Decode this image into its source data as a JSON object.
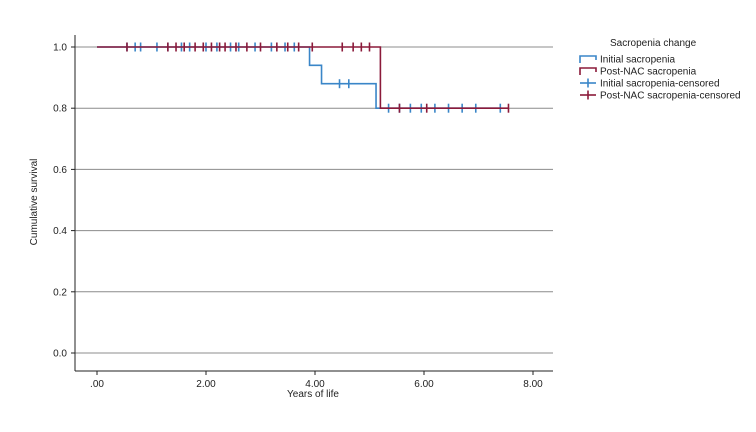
{
  "chart_data": {
    "type": "line",
    "subtype": "kaplan-meier",
    "title": "",
    "xlabel": "Years of life",
    "ylabel": "Cumulative survival",
    "xlim": [
      -0.4,
      8.4
    ],
    "ylim": [
      -0.05,
      1.08
    ],
    "x_ticks": [
      0,
      2,
      4,
      6,
      8
    ],
    "x_tick_labels": [
      ".00",
      "2.00",
      "4.00",
      "6.00",
      "8.00"
    ],
    "y_ticks": [
      0,
      0.2,
      0.4,
      0.6,
      0.8,
      1.0
    ],
    "y_tick_labels": [
      "0.0",
      "0.2",
      "0.4",
      "0.6",
      "0.8",
      "1.0"
    ],
    "grid": "horizontal",
    "legend": {
      "title": "Sacropenia change",
      "position": "top-right",
      "entries": [
        {
          "label": "Initial sacropenia",
          "kind": "step",
          "color": "#3a86c8"
        },
        {
          "label": "Post-NAC sacropenia",
          "kind": "step",
          "color": "#8b1a3a"
        },
        {
          "label": "Initial sacropenia-censored",
          "kind": "censor",
          "color": "#3a86c8"
        },
        {
          "label": "Post-NAC sacropenia-censored",
          "kind": "censor",
          "color": "#8b1a3a"
        }
      ]
    },
    "series": [
      {
        "name": "Initial sacropenia",
        "color": "#3a86c8",
        "steps": [
          [
            0,
            1.0
          ],
          [
            3.9,
            0.94
          ],
          [
            4.12,
            0.88
          ],
          [
            5.12,
            0.8
          ],
          [
            7.4,
            0.8
          ]
        ],
        "censored": [
          {
            "x": 0.55,
            "y": 1.0
          },
          {
            "x": 0.7,
            "y": 1.0
          },
          {
            "x": 0.8,
            "y": 1.0
          },
          {
            "x": 1.1,
            "y": 1.0
          },
          {
            "x": 1.3,
            "y": 1.0
          },
          {
            "x": 1.55,
            "y": 1.0
          },
          {
            "x": 1.7,
            "y": 1.0
          },
          {
            "x": 2.0,
            "y": 1.0
          },
          {
            "x": 2.2,
            "y": 1.0
          },
          {
            "x": 2.45,
            "y": 1.0
          },
          {
            "x": 2.6,
            "y": 1.0
          },
          {
            "x": 2.9,
            "y": 1.0
          },
          {
            "x": 3.2,
            "y": 1.0
          },
          {
            "x": 3.45,
            "y": 1.0
          },
          {
            "x": 3.62,
            "y": 1.0
          },
          {
            "x": 4.45,
            "y": 0.88
          },
          {
            "x": 4.62,
            "y": 0.88
          },
          {
            "x": 5.35,
            "y": 0.8
          },
          {
            "x": 5.55,
            "y": 0.8
          },
          {
            "x": 5.75,
            "y": 0.8
          },
          {
            "x": 5.95,
            "y": 0.8
          },
          {
            "x": 6.2,
            "y": 0.8
          },
          {
            "x": 6.45,
            "y": 0.8
          },
          {
            "x": 6.7,
            "y": 0.8
          },
          {
            "x": 6.95,
            "y": 0.8
          },
          {
            "x": 7.4,
            "y": 0.8
          }
        ]
      },
      {
        "name": "Post-NAC sacropenia",
        "color": "#8b1a3a",
        "steps": [
          [
            0,
            1.0
          ],
          [
            5.2,
            0.8
          ],
          [
            7.55,
            0.8
          ]
        ],
        "censored": [
          {
            "x": 0.55,
            "y": 1.0
          },
          {
            "x": 1.3,
            "y": 1.0
          },
          {
            "x": 1.45,
            "y": 1.0
          },
          {
            "x": 1.6,
            "y": 1.0
          },
          {
            "x": 1.8,
            "y": 1.0
          },
          {
            "x": 1.95,
            "y": 1.0
          },
          {
            "x": 2.1,
            "y": 1.0
          },
          {
            "x": 2.25,
            "y": 1.0
          },
          {
            "x": 2.35,
            "y": 1.0
          },
          {
            "x": 2.55,
            "y": 1.0
          },
          {
            "x": 2.75,
            "y": 1.0
          },
          {
            "x": 3.0,
            "y": 1.0
          },
          {
            "x": 3.3,
            "y": 1.0
          },
          {
            "x": 3.5,
            "y": 1.0
          },
          {
            "x": 3.7,
            "y": 1.0
          },
          {
            "x": 3.95,
            "y": 1.0
          },
          {
            "x": 4.5,
            "y": 1.0
          },
          {
            "x": 4.7,
            "y": 1.0
          },
          {
            "x": 4.85,
            "y": 1.0
          },
          {
            "x": 5.0,
            "y": 1.0
          },
          {
            "x": 5.55,
            "y": 0.8
          },
          {
            "x": 6.05,
            "y": 0.8
          },
          {
            "x": 7.55,
            "y": 0.8
          }
        ]
      }
    ]
  }
}
